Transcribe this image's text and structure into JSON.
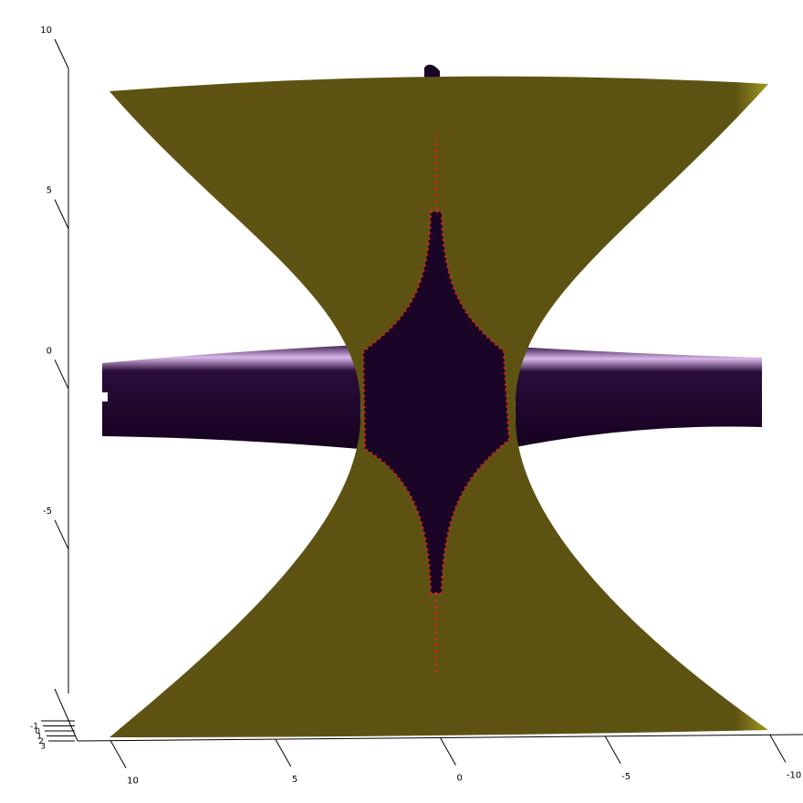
{
  "chart_data": {
    "type": "surface3d",
    "xlim": [
      11,
      -11
    ],
    "xticks": [
      10,
      5,
      0,
      -5,
      -10
    ],
    "zlim": [
      -9.5,
      10
    ],
    "zticks": [
      10,
      5,
      0,
      -5
    ],
    "ylim": [
      -1,
      3
    ],
    "yticks": [
      -1,
      0,
      1,
      2,
      3
    ]
  }
}
